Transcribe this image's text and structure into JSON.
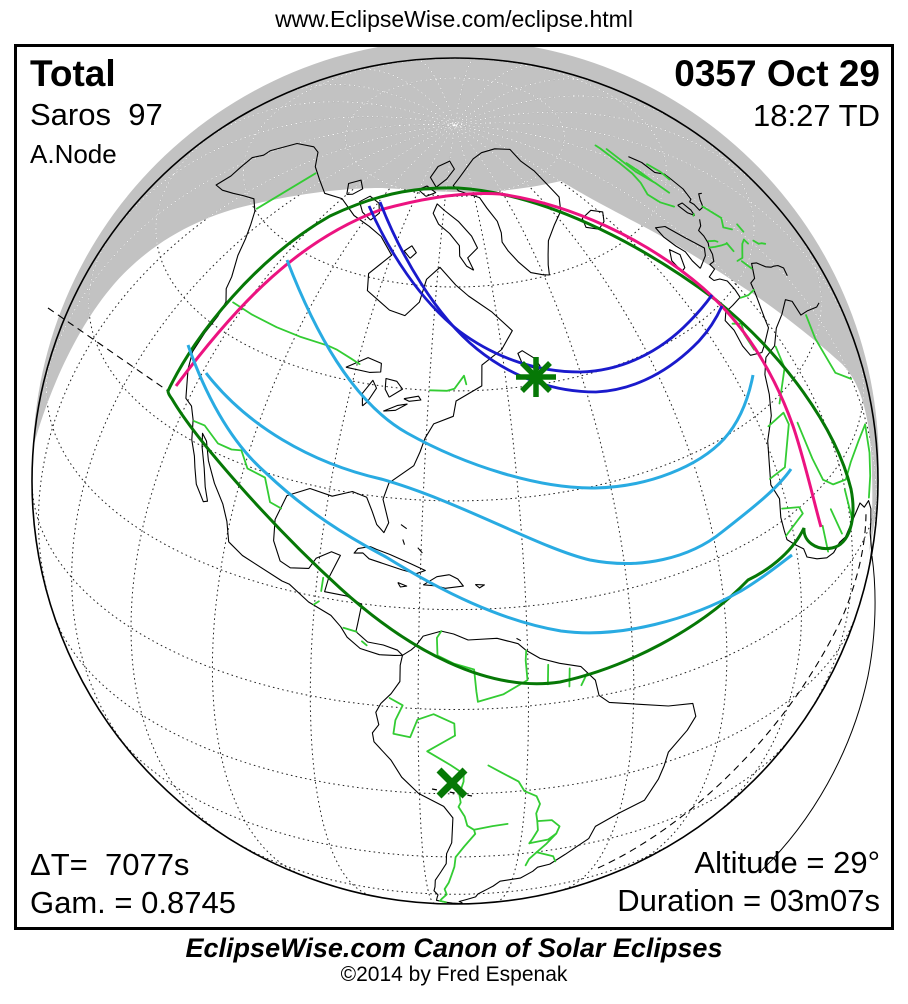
{
  "page": {
    "site_url": "www.EclipseWise.com/eclipse.html"
  },
  "eclipse": {
    "type": "Total",
    "saros": "Saros  97",
    "node": "A.Node",
    "date": "0357 Oct 29",
    "time": "18:27 TD",
    "delta_t": "ΔT=  7077s",
    "gamma": "Gam. = 0.8745",
    "altitude": "Altitude = 29°",
    "duration": "Duration = 03m07s"
  },
  "footer": {
    "title": "EclipseWise.com Canon of Solar Eclipses",
    "copyright": "©2014 by Fred Espenak"
  },
  "markers": [
    {
      "name": "greatest-eclipse-star-icon",
      "glyph": "✳",
      "color": "#067806"
    },
    {
      "name": "sub-solar-x-icon",
      "glyph": "✕",
      "color": "#067806"
    }
  ],
  "colors": {
    "night_shade": "#C2C2C2",
    "coastline": "#000000",
    "political_border": "#33CC33",
    "penumbra_limit_green": "#067806",
    "rise_set_magenta": "#EC1380",
    "total_path_blue": "#1A1ACC",
    "max_eclipse_cyan": "#29ABE2",
    "graticule_day": "#222222",
    "graticule_night": "#FFFFFF",
    "marker_green": "#067806"
  }
}
